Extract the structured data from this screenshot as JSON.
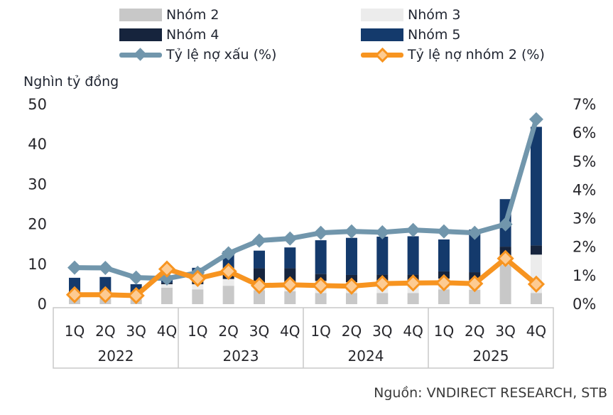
{
  "source": "Nguồn: VNDIRECT RESEARCH, STB",
  "colors": {
    "background": "#ffffff",
    "text": "#1f2430",
    "axis_text": "#26262b",
    "axis_box_border": "#c9c9c9",
    "source_text": "#3a3a3a"
  },
  "chart_data": {
    "type": "bar",
    "subtype": "stacked-bars-with-two-lines",
    "title": "",
    "xlabel": "",
    "ylabel_left": "Nghìn tỷ đồng",
    "legend_position": "top",
    "grid": false,
    "year_groups": [
      {
        "year": "2022",
        "quarters": [
          "1Q",
          "2Q",
          "3Q",
          "4Q"
        ]
      },
      {
        "year": "2023",
        "quarters": [
          "1Q",
          "2Q",
          "3Q",
          "4Q"
        ]
      },
      {
        "year": "2024",
        "quarters": [
          "1Q",
          "2Q",
          "3Q",
          "4Q"
        ]
      },
      {
        "year": "2025",
        "quarters": [
          "1Q",
          "2Q",
          "3Q",
          "4Q"
        ]
      }
    ],
    "left_axis": {
      "title": "Nghìn tỷ đồng",
      "min": 0,
      "max": 50,
      "ticks": [
        0,
        10,
        20,
        30,
        40,
        50
      ]
    },
    "right_axis": {
      "min": 0,
      "max": 7,
      "ticks": [
        "0%",
        "1%",
        "2%",
        "3%",
        "4%",
        "5%",
        "6%",
        "7%"
      ]
    },
    "bar_series": [
      {
        "name": "Nhóm 2",
        "color": "#c8c8c8",
        "values": [
          1.4,
          1.4,
          1.2,
          4.1,
          3.7,
          4.6,
          3.5,
          3.2,
          2.8,
          2.8,
          2.8,
          2.8,
          3.7,
          3.6,
          9.8,
          2.8
        ]
      },
      {
        "name": "Nhóm 3",
        "color": "#ececec",
        "values": [
          1.0,
          1.0,
          0.8,
          0.9,
          1.3,
          1.7,
          1.8,
          2.1,
          3.0,
          2.7,
          2.7,
          2.7,
          2.7,
          2.3,
          2.3,
          9.6
        ]
      },
      {
        "name": "Nhóm 4",
        "color": "#16243d",
        "values": [
          1.0,
          1.1,
          0.6,
          0.4,
          0.9,
          1.5,
          3.7,
          3.7,
          1.8,
          1.8,
          1.9,
          1.9,
          1.8,
          2.1,
          2.3,
          2.3
        ]
      },
      {
        "name": "Nhóm 5",
        "color": "#143a6c",
        "values": [
          3.2,
          3.3,
          2.4,
          0.8,
          3.2,
          5.5,
          4.4,
          5.2,
          8.4,
          9.3,
          9.5,
          9.6,
          8.0,
          10.7,
          11.9,
          29.7
        ]
      }
    ],
    "line_series": [
      {
        "name": "Tỷ lệ nợ xấu (%)",
        "axis": "right",
        "color": "#7196ac",
        "marker": "diamond-solid",
        "marker_fill": "#7196ac",
        "values": [
          1.28,
          1.27,
          0.93,
          0.9,
          1.1,
          1.78,
          2.23,
          2.3,
          2.5,
          2.55,
          2.52,
          2.6,
          2.55,
          2.5,
          2.8,
          6.48
        ]
      },
      {
        "name": "Tỷ lệ nợ nhóm 2 (%)",
        "axis": "right",
        "color": "#f79420",
        "marker": "diamond-outlined",
        "marker_fill": "#fdcb92",
        "values": [
          0.33,
          0.33,
          0.3,
          1.23,
          0.9,
          1.15,
          0.65,
          0.68,
          0.65,
          0.63,
          0.72,
          0.74,
          0.75,
          0.72,
          1.6,
          0.7
        ]
      }
    ]
  }
}
